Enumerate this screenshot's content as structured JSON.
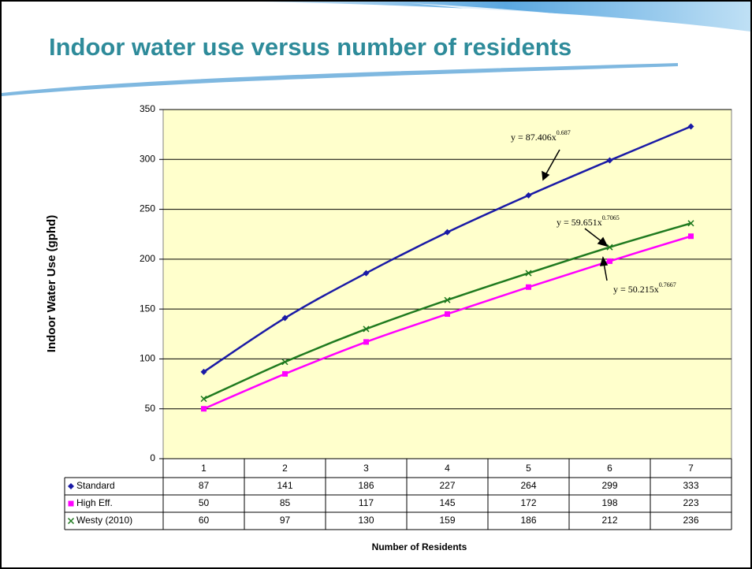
{
  "chart_data": {
    "type": "line",
    "title": "Indoor water use versus number of residents",
    "y_label": "Indoor Water Use (gphd)",
    "x_label": "Number of Residents",
    "categories": [
      1,
      2,
      3,
      4,
      5,
      6,
      7
    ],
    "series": [
      {
        "name": "Standard",
        "color": "#1a1aa6",
        "marker": "diamond",
        "values": [
          87,
          141,
          186,
          227,
          264,
          299,
          333
        ]
      },
      {
        "name": "High Eff.",
        "color": "#ff00ff",
        "marker": "square",
        "values": [
          50,
          85,
          117,
          145,
          172,
          198,
          223
        ]
      },
      {
        "name": "Westy (2010)",
        "color": "#1f7a1f",
        "marker": "x",
        "values": [
          60,
          97,
          130,
          159,
          186,
          212,
          236
        ]
      }
    ],
    "ylim": [
      0,
      350
    ],
    "yticks": [
      0,
      50,
      100,
      150,
      200,
      250,
      300,
      350
    ],
    "grid": true,
    "annotations": [
      {
        "text": "y = 87.406x",
        "exponent": "0.687"
      },
      {
        "text": "y = 59.651x",
        "exponent": "0.7065"
      },
      {
        "text": "y = 50.215x",
        "exponent": "0.7667"
      }
    ]
  }
}
